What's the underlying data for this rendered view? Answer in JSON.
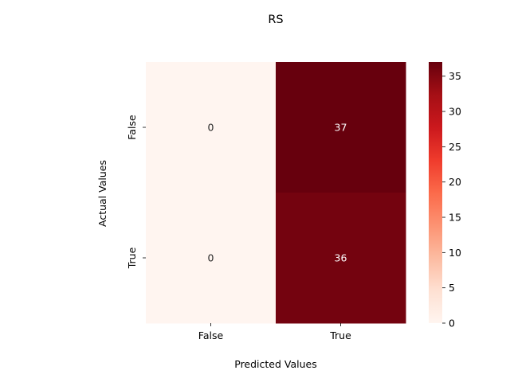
{
  "chart_data": {
    "type": "heatmap",
    "title": "RS",
    "xlabel": "Predicted Values",
    "ylabel": "Actual Values",
    "x_categories": [
      "False",
      "True"
    ],
    "y_categories": [
      "False",
      "True"
    ],
    "values": [
      [
        0,
        37
      ],
      [
        0,
        36
      ]
    ],
    "colormap": "Reds",
    "colorbar": {
      "min": 0,
      "max": 37,
      "ticks": [
        0,
        5,
        10,
        15,
        20,
        25,
        30,
        35
      ]
    }
  }
}
